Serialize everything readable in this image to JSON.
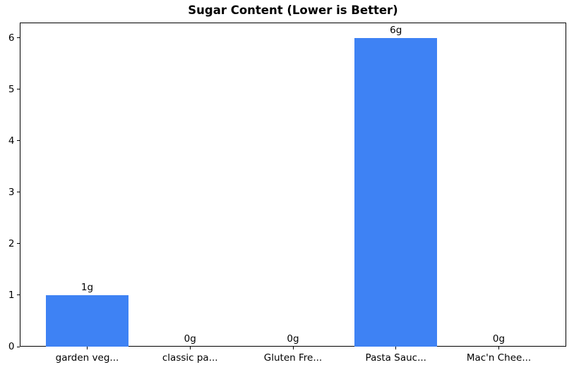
{
  "chart_data": {
    "type": "bar",
    "title": "Sugar Content (Lower is Better)",
    "categories": [
      "garden veg...",
      "classic pa...",
      "Gluten Fre...",
      "Pasta Sauc...",
      "Mac'n Chee..."
    ],
    "values": [
      1,
      0,
      0,
      6,
      0
    ],
    "value_labels": [
      "1g",
      "0g",
      "0g",
      "6g",
      "0g"
    ],
    "xlabel": "",
    "ylabel": "",
    "ylim": [
      0,
      6.3
    ],
    "yticks": [
      0,
      1,
      2,
      3,
      4,
      5,
      6
    ],
    "bar_color": "#3e82f4",
    "text_color": "#000000",
    "grid": false,
    "legend": false
  }
}
